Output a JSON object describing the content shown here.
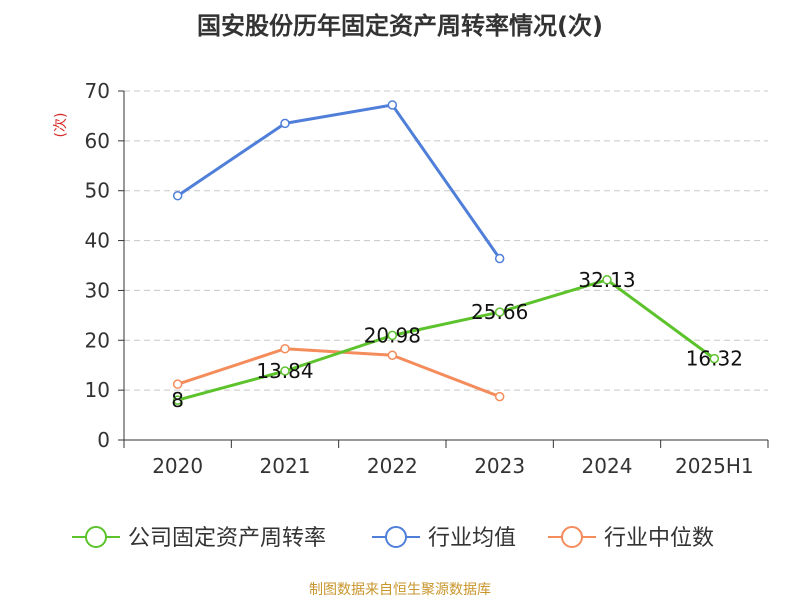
{
  "title": "国安股份历年固定资产周转率情况(次)",
  "source": "制图数据来自恒生聚源数据库",
  "colors": {
    "公司固定资产周转率": "#5dc32d",
    "行业均值": "#4f7fd9",
    "行业中位数": "#f48c5b",
    "unit": "#d62a2a",
    "source": "#c8962d"
  },
  "chart_data": {
    "type": "line",
    "title": "国安股份历年固定资产周转率情况(次)",
    "ylabel": "(次)",
    "xlabel": "",
    "ylim": [
      0,
      70
    ],
    "yticks": [
      0,
      10,
      20,
      30,
      40,
      50,
      60,
      70
    ],
    "categories": [
      "2020",
      "2021",
      "2022",
      "2023",
      "2024",
      "2025H1"
    ],
    "grid": true,
    "legend": "bottom",
    "series": [
      {
        "name": "公司固定资产周转率",
        "values": [
          8,
          13.84,
          20.98,
          25.66,
          32.13,
          16.32
        ],
        "labels": [
          "8",
          "13.84",
          "20.98",
          "25.66",
          "32.13",
          "16.32"
        ]
      },
      {
        "name": "行业均值",
        "values": [
          49,
          63.5,
          67.2,
          36.4,
          null,
          null
        ]
      },
      {
        "name": "行业中位数",
        "values": [
          11.2,
          18.3,
          17.0,
          8.7,
          null,
          null
        ]
      }
    ]
  }
}
